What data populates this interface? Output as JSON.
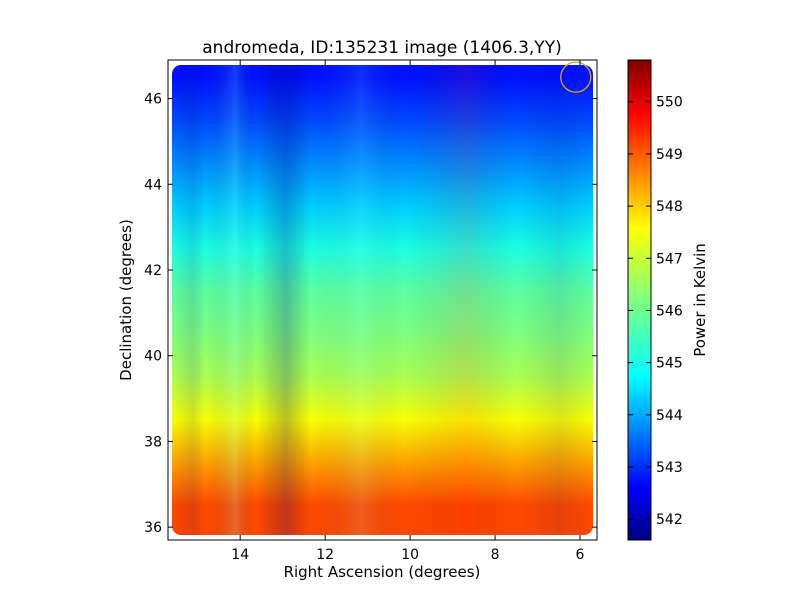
{
  "chart_data": {
    "type": "heatmap",
    "title": "andromeda, ID:135231 image (1406.3,YY)",
    "xlabel": "Right Ascension (degrees)",
    "ylabel": "Declination (degrees)",
    "xlim": [
      15.7,
      5.6
    ],
    "ylim": [
      35.7,
      46.9
    ],
    "xticks": [
      14,
      12,
      10,
      8,
      6
    ],
    "yticks": [
      36,
      38,
      40,
      42,
      44,
      46
    ],
    "xtick_labels": [
      "14",
      "12",
      "10",
      "8",
      "6"
    ],
    "ytick_labels": [
      "36",
      "38",
      "40",
      "42",
      "44",
      "46"
    ],
    "colorbar": {
      "label": "Power in Kelvin",
      "range": [
        541.6,
        550.8
      ],
      "ticks": [
        542,
        543,
        544,
        545,
        546,
        547,
        548,
        549,
        550
      ],
      "tick_labels": [
        "542",
        "543",
        "544",
        "545",
        "546",
        "547",
        "548",
        "549",
        "550"
      ],
      "colormap": "jet"
    },
    "field_rows": [
      {
        "dec": 46.5,
        "power": 542.9
      },
      {
        "dec": 45.5,
        "power": 543.4
      },
      {
        "dec": 44.5,
        "power": 544.0
      },
      {
        "dec": 43.5,
        "power": 544.6
      },
      {
        "dec": 42.5,
        "power": 545.3
      },
      {
        "dec": 41.5,
        "power": 545.9
      },
      {
        "dec": 40.5,
        "power": 546.2
      },
      {
        "dec": 39.5,
        "power": 546.6
      },
      {
        "dec": 38.5,
        "power": 547.3
      },
      {
        "dec": 37.5,
        "power": 548.2
      },
      {
        "dec": 36.5,
        "power": 549.0
      }
    ],
    "marker": {
      "shape": "circle",
      "ra": 6.1,
      "dec": 46.5,
      "color": "#DAA520"
    },
    "grid": false
  }
}
